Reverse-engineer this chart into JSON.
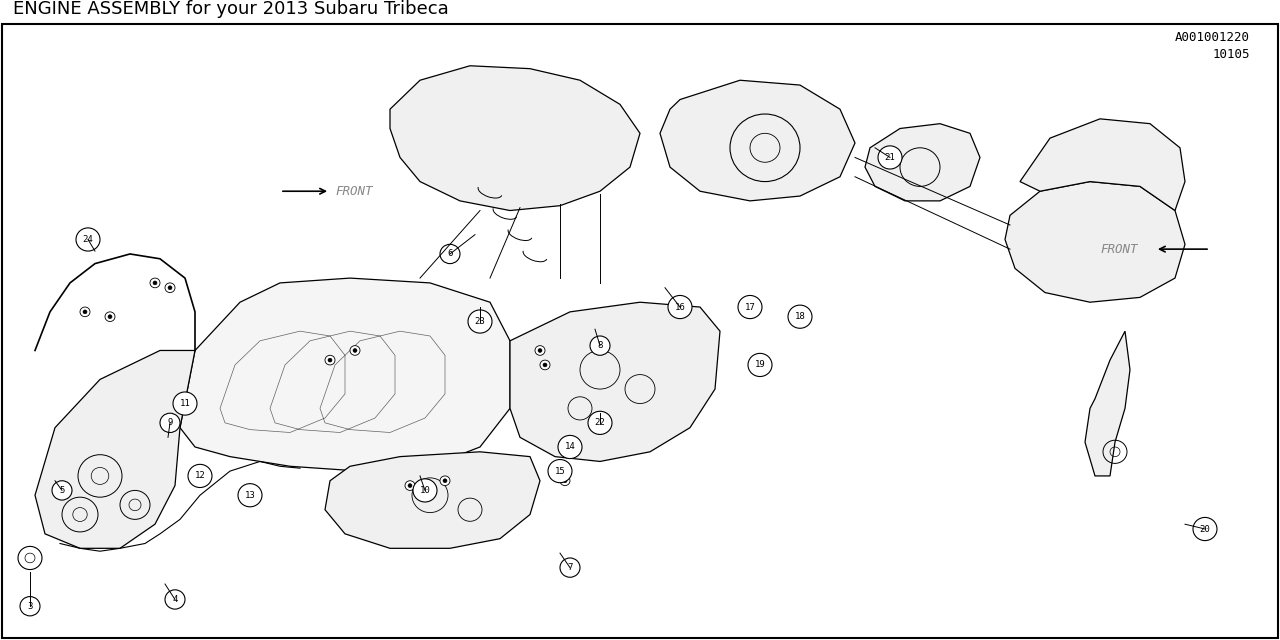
{
  "title": "ENGINE ASSEMBLY for your 2013 Subaru Tribeca",
  "title_fontsize": 13,
  "title_color": "#000000",
  "background_color": "#ffffff",
  "diagram_code": "10105",
  "diagram_ref": "A001001220",
  "fig_width": 12.8,
  "fig_height": 6.4,
  "border_color": "#000000",
  "text_color": "#000000",
  "note": "Technical engine assembly exploded diagram - Subaru Tribeca 2013",
  "part_numbers": [
    "3",
    "4",
    "5",
    "6",
    "7",
    "8",
    "9",
    "10",
    "11",
    "12",
    "13",
    "14",
    "15",
    "16",
    "17",
    "18",
    "19",
    "20",
    "21",
    "22",
    "23",
    "24"
  ],
  "front_label": "FRONT",
  "front_label2": "FRONT"
}
